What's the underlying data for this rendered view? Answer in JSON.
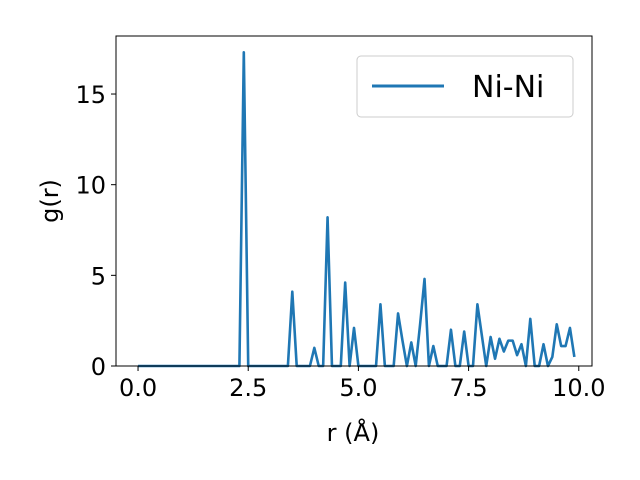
{
  "chart_data": {
    "type": "line",
    "xlabel": "r (Å)",
    "ylabel": "g(r)",
    "xlim": [
      -0.5,
      10.3
    ],
    "ylim": [
      0,
      18.2
    ],
    "xticks": [
      0.0,
      2.5,
      5.0,
      7.5,
      10.0
    ],
    "xtick_labels": [
      "0.0",
      "2.5",
      "5.0",
      "7.5",
      "10.0"
    ],
    "yticks": [
      0,
      5,
      10,
      15
    ],
    "ytick_labels": [
      "0",
      "5",
      "10",
      "15"
    ],
    "grid": false,
    "legend_position": "top-right",
    "series": [
      {
        "name": "Ni-Ni",
        "color": "#1f77b4",
        "x": [
          0.0,
          0.1,
          0.2,
          0.3,
          0.4,
          0.5,
          0.6,
          0.7,
          0.8,
          0.9,
          1.0,
          1.1,
          1.2,
          1.3,
          1.4,
          1.5,
          1.6,
          1.7,
          1.8,
          1.9,
          2.0,
          2.1,
          2.2,
          2.3,
          2.4,
          2.5,
          2.6,
          2.7,
          2.8,
          2.9,
          3.0,
          3.1,
          3.2,
          3.3,
          3.4,
          3.5,
          3.6,
          3.7,
          3.8,
          3.9,
          4.0,
          4.1,
          4.2,
          4.3,
          4.4,
          4.5,
          4.6,
          4.7,
          4.8,
          4.9,
          5.0,
          5.1,
          5.2,
          5.3,
          5.4,
          5.5,
          5.6,
          5.7,
          5.8,
          5.9,
          6.0,
          6.1,
          6.2,
          6.3,
          6.4,
          6.5,
          6.6,
          6.7,
          6.8,
          6.9,
          7.0,
          7.1,
          7.2,
          7.3,
          7.4,
          7.5,
          7.6,
          7.7,
          7.8,
          7.9,
          8.0,
          8.1,
          8.2,
          8.3,
          8.4,
          8.5,
          8.6,
          8.7,
          8.8,
          8.9,
          9.0,
          9.1,
          9.2,
          9.3,
          9.4,
          9.5,
          9.6,
          9.7,
          9.8,
          9.9
        ],
        "y": [
          0,
          0,
          0,
          0,
          0,
          0,
          0,
          0,
          0,
          0,
          0,
          0,
          0,
          0,
          0,
          0,
          0,
          0,
          0,
          0,
          0,
          0,
          0,
          0,
          17.3,
          0,
          0,
          0,
          0,
          0,
          0,
          0,
          0,
          0,
          0,
          4.1,
          0,
          0,
          0,
          0,
          1.0,
          0,
          0,
          8.2,
          0,
          0,
          0,
          4.6,
          0,
          2.1,
          0,
          0,
          0,
          0,
          0,
          3.4,
          0,
          0,
          0,
          2.9,
          1.4,
          0,
          1.3,
          0,
          2.3,
          4.8,
          0,
          1.1,
          0,
          0,
          0,
          2.0,
          0,
          0,
          1.9,
          0,
          0,
          3.4,
          1.7,
          0,
          1.6,
          0.4,
          1.5,
          0.8,
          1.4,
          1.4,
          0.6,
          1.2,
          0,
          2.6,
          0,
          0,
          1.2,
          0,
          0.5,
          2.3,
          1.1,
          1.1,
          2.1,
          0.5
        ]
      }
    ]
  }
}
